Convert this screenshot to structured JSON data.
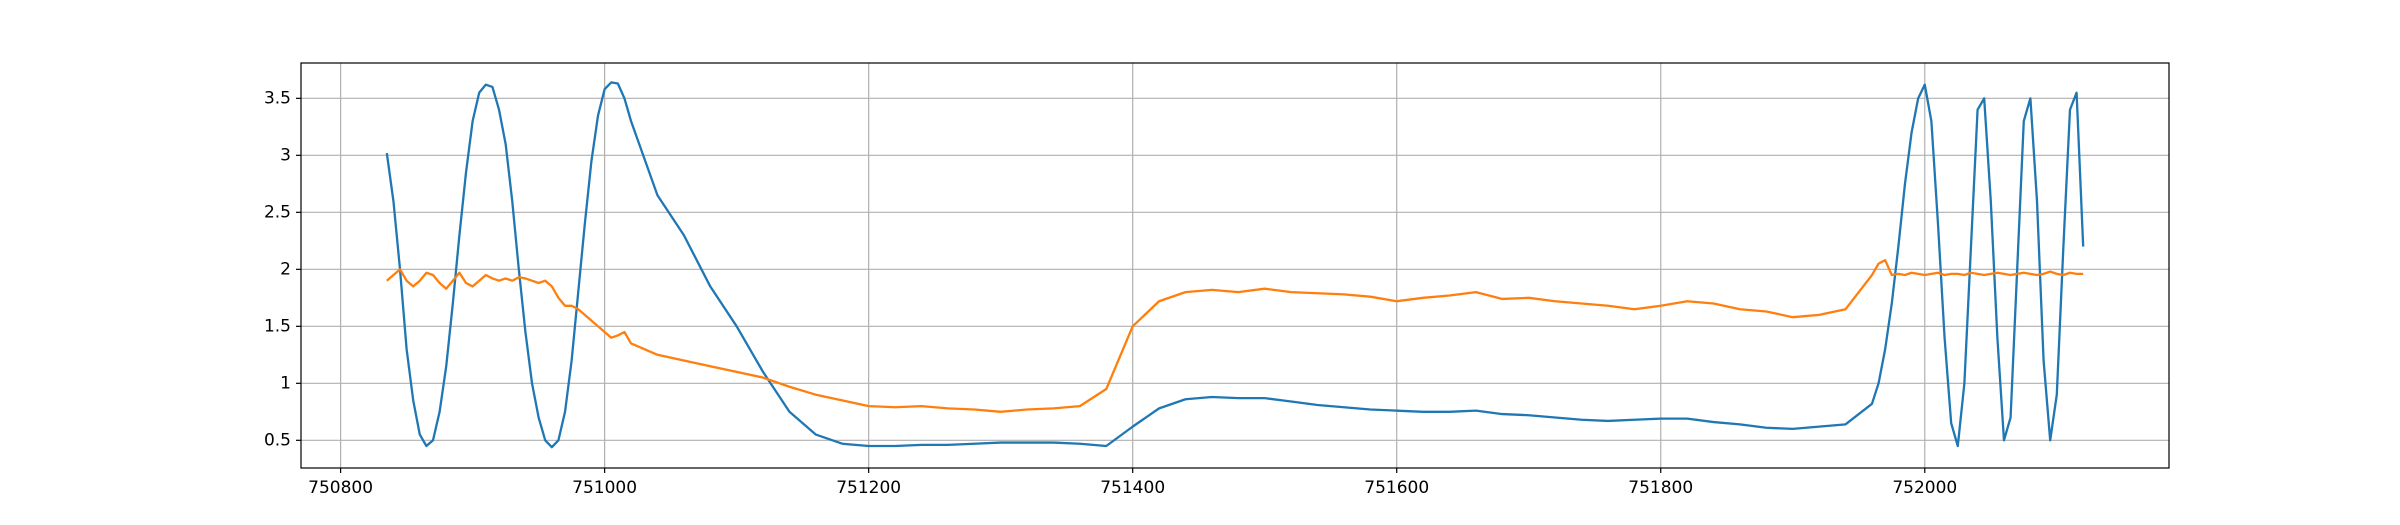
{
  "chart_data": {
    "type": "line",
    "x": [
      750835,
      750840,
      750845,
      750850,
      750855,
      750860,
      750865,
      750870,
      750875,
      750880,
      750885,
      750890,
      750895,
      750900,
      750905,
      750910,
      750915,
      750920,
      750925,
      750930,
      750935,
      750940,
      750945,
      750950,
      750955,
      750960,
      750965,
      750970,
      750975,
      750980,
      750985,
      750990,
      750995,
      751000,
      751005,
      751010,
      751015,
      751020,
      751040,
      751060,
      751080,
      751100,
      751120,
      751140,
      751160,
      751180,
      751200,
      751220,
      751240,
      751260,
      751280,
      751300,
      751320,
      751340,
      751360,
      751380,
      751400,
      751420,
      751440,
      751460,
      751480,
      751500,
      751520,
      751540,
      751560,
      751580,
      751600,
      751620,
      751640,
      751660,
      751680,
      751700,
      751720,
      751740,
      751760,
      751780,
      751800,
      751820,
      751840,
      751860,
      751880,
      751900,
      751920,
      751940,
      751960,
      751965,
      751970,
      751975,
      751980,
      751985,
      751990,
      751995,
      752000,
      752005,
      752010,
      752015,
      752020,
      752025,
      752030,
      752035,
      752040,
      752045,
      752050,
      752055,
      752060,
      752065,
      752070,
      752075,
      752080,
      752085,
      752090,
      752095,
      752100,
      752105,
      752110,
      752115,
      752120
    ],
    "series": [
      {
        "color": "#1f77b4",
        "values": [
          3.02,
          2.6,
          2.0,
          1.3,
          0.85,
          0.55,
          0.45,
          0.5,
          0.75,
          1.15,
          1.7,
          2.3,
          2.85,
          3.3,
          3.55,
          3.62,
          3.6,
          3.4,
          3.1,
          2.6,
          2.0,
          1.45,
          1.0,
          0.7,
          0.5,
          0.44,
          0.5,
          0.75,
          1.2,
          1.8,
          2.4,
          2.95,
          3.35,
          3.58,
          3.64,
          3.63,
          3.5,
          3.3,
          2.65,
          2.3,
          1.85,
          1.5,
          1.1,
          0.75,
          0.55,
          0.47,
          0.45,
          0.45,
          0.46,
          0.46,
          0.47,
          0.48,
          0.48,
          0.48,
          0.47,
          0.45,
          0.62,
          0.78,
          0.86,
          0.88,
          0.87,
          0.87,
          0.84,
          0.81,
          0.79,
          0.77,
          0.76,
          0.75,
          0.75,
          0.76,
          0.73,
          0.72,
          0.7,
          0.68,
          0.67,
          0.68,
          0.69,
          0.69,
          0.66,
          0.64,
          0.61,
          0.6,
          0.62,
          0.64,
          0.82,
          1.0,
          1.3,
          1.7,
          2.2,
          2.75,
          3.2,
          3.5,
          3.62,
          3.3,
          2.4,
          1.4,
          0.65,
          0.45,
          1.0,
          2.2,
          3.4,
          3.5,
          2.6,
          1.4,
          0.5,
          0.7,
          2.0,
          3.3,
          3.5,
          2.6,
          1.2,
          0.5,
          0.9,
          2.2,
          3.4,
          3.55,
          2.2
        ]
      },
      {
        "color": "#ff7f0e",
        "values": [
          1.9,
          1.95,
          2.0,
          1.9,
          1.85,
          1.9,
          1.97,
          1.95,
          1.88,
          1.83,
          1.9,
          1.97,
          1.88,
          1.85,
          1.9,
          1.95,
          1.92,
          1.9,
          1.92,
          1.9,
          1.93,
          1.92,
          1.9,
          1.88,
          1.9,
          1.85,
          1.75,
          1.68,
          1.68,
          1.65,
          1.6,
          1.55,
          1.5,
          1.45,
          1.4,
          1.42,
          1.45,
          1.35,
          1.25,
          1.2,
          1.15,
          1.1,
          1.05,
          0.97,
          0.9,
          0.85,
          0.8,
          0.79,
          0.8,
          0.78,
          0.77,
          0.75,
          0.77,
          0.78,
          0.8,
          0.95,
          1.5,
          1.72,
          1.8,
          1.82,
          1.8,
          1.83,
          1.8,
          1.79,
          1.78,
          1.76,
          1.72,
          1.75,
          1.77,
          1.8,
          1.74,
          1.75,
          1.72,
          1.7,
          1.68,
          1.65,
          1.68,
          1.72,
          1.7,
          1.65,
          1.63,
          1.58,
          1.6,
          1.65,
          1.95,
          2.05,
          2.08,
          1.95,
          1.96,
          1.95,
          1.97,
          1.96,
          1.95,
          1.96,
          1.97,
          1.95,
          1.96,
          1.96,
          1.95,
          1.97,
          1.96,
          1.95,
          1.96,
          1.97,
          1.96,
          1.95,
          1.96,
          1.97,
          1.96,
          1.95,
          1.96,
          1.98,
          1.96,
          1.95,
          1.97,
          1.96,
          1.96
        ]
      }
    ],
    "xlim": [
      750770,
      752185
    ],
    "xticks": [
      750800,
      751000,
      751200,
      751400,
      751600,
      751800,
      752000
    ],
    "ylim": [
      0.257,
      3.81
    ],
    "yticks": [
      0.5,
      1.0,
      1.5,
      2.0,
      2.5,
      3.0,
      3.5
    ],
    "grid": true
  }
}
